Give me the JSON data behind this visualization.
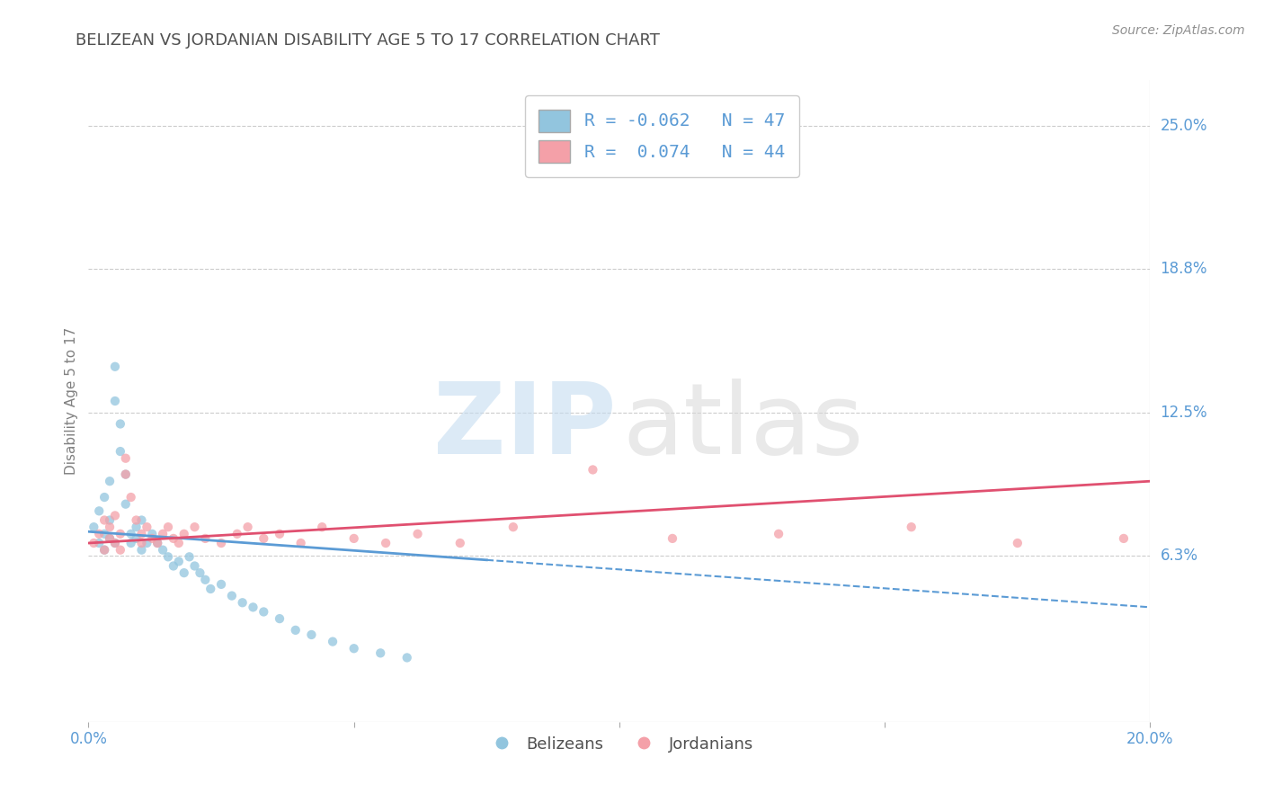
{
  "title": "BELIZEAN VS JORDANIAN DISABILITY AGE 5 TO 17 CORRELATION CHART",
  "source_text": "Source: ZipAtlas.com",
  "ylabel": "Disability Age 5 to 17",
  "xlim": [
    0.0,
    0.2
  ],
  "ylim": [
    -0.01,
    0.27
  ],
  "xticks": [
    0.0,
    0.05,
    0.1,
    0.15,
    0.2
  ],
  "xtick_labels": [
    "0.0%",
    "",
    "",
    "",
    "20.0%"
  ],
  "ytick_vals": [
    0.0625,
    0.125,
    0.1875,
    0.25
  ],
  "ytick_labels": [
    "6.3%",
    "12.5%",
    "18.8%",
    "25.0%"
  ],
  "belizean_color": "#92C5DE",
  "jordanian_color": "#F4A0A8",
  "belizean_R": -0.062,
  "belizean_N": 47,
  "jordanian_R": 0.074,
  "jordanian_N": 44,
  "trend_blue": "#5B9BD5",
  "trend_pink": "#E05070",
  "background_color": "#FFFFFF",
  "grid_color": "#CCCCCC",
  "title_color": "#505050",
  "axis_label_color": "#5B9BD5",
  "watermark_color_zip": "#C5DCF0",
  "watermark_color_atlas": "#D8D8D8",
  "belizean_points_x": [
    0.001,
    0.002,
    0.002,
    0.003,
    0.003,
    0.003,
    0.004,
    0.004,
    0.004,
    0.005,
    0.005,
    0.005,
    0.006,
    0.006,
    0.007,
    0.007,
    0.008,
    0.008,
    0.009,
    0.009,
    0.01,
    0.01,
    0.011,
    0.012,
    0.013,
    0.014,
    0.015,
    0.016,
    0.017,
    0.018,
    0.019,
    0.02,
    0.021,
    0.022,
    0.023,
    0.025,
    0.027,
    0.029,
    0.031,
    0.033,
    0.036,
    0.039,
    0.042,
    0.046,
    0.05,
    0.055,
    0.06
  ],
  "belizean_points_y": [
    0.075,
    0.068,
    0.082,
    0.072,
    0.065,
    0.088,
    0.07,
    0.078,
    0.095,
    0.068,
    0.13,
    0.145,
    0.12,
    0.108,
    0.098,
    0.085,
    0.072,
    0.068,
    0.075,
    0.07,
    0.078,
    0.065,
    0.068,
    0.072,
    0.068,
    0.065,
    0.062,
    0.058,
    0.06,
    0.055,
    0.062,
    0.058,
    0.055,
    0.052,
    0.048,
    0.05,
    0.045,
    0.042,
    0.04,
    0.038,
    0.035,
    0.03,
    0.028,
    0.025,
    0.022,
    0.02,
    0.018
  ],
  "jordanian_points_x": [
    0.001,
    0.002,
    0.003,
    0.003,
    0.004,
    0.004,
    0.005,
    0.005,
    0.006,
    0.006,
    0.007,
    0.007,
    0.008,
    0.009,
    0.01,
    0.01,
    0.011,
    0.012,
    0.013,
    0.014,
    0.015,
    0.016,
    0.017,
    0.018,
    0.02,
    0.022,
    0.025,
    0.028,
    0.03,
    0.033,
    0.036,
    0.04,
    0.044,
    0.05,
    0.056,
    0.062,
    0.07,
    0.08,
    0.095,
    0.11,
    0.13,
    0.155,
    0.175,
    0.195
  ],
  "jordanian_points_y": [
    0.068,
    0.072,
    0.065,
    0.078,
    0.07,
    0.075,
    0.068,
    0.08,
    0.072,
    0.065,
    0.105,
    0.098,
    0.088,
    0.078,
    0.072,
    0.068,
    0.075,
    0.07,
    0.068,
    0.072,
    0.075,
    0.07,
    0.068,
    0.072,
    0.075,
    0.07,
    0.068,
    0.072,
    0.075,
    0.07,
    0.072,
    0.068,
    0.075,
    0.07,
    0.068,
    0.072,
    0.068,
    0.075,
    0.1,
    0.07,
    0.072,
    0.075,
    0.068,
    0.07
  ]
}
